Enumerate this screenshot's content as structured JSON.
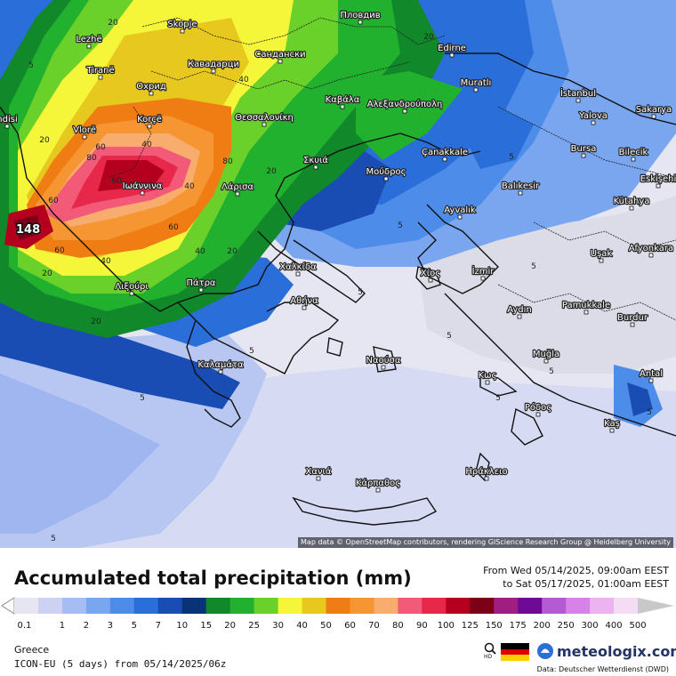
{
  "map": {
    "attribution": "Map data © OpenStreetMap contributors, rendering GIScience Research Group @ Heidelberg University",
    "peak_value": "148",
    "cities": [
      {
        "name": "Skopje"
      },
      {
        "name": "Пловдив"
      },
      {
        "name": "Lezhë"
      },
      {
        "name": "Кавадарци"
      },
      {
        "name": "Сандански"
      },
      {
        "name": "Edirne"
      },
      {
        "name": "Tiranë"
      },
      {
        "name": "Охрид"
      },
      {
        "name": "Muratlı"
      },
      {
        "name": "İstanbul"
      },
      {
        "name": "Καβάλα"
      },
      {
        "name": "Αλεξανδρούπολη"
      },
      {
        "name": "Korçë"
      },
      {
        "name": "Θεσσαλονίκη"
      },
      {
        "name": "Yalova"
      },
      {
        "name": "Sakarya"
      },
      {
        "name": "ndisi"
      },
      {
        "name": "Vlorë"
      },
      {
        "name": "Çanakkale"
      },
      {
        "name": "Bursa"
      },
      {
        "name": "Bilecik"
      },
      {
        "name": "Σκυιά"
      },
      {
        "name": "Μούδρος"
      },
      {
        "name": "Ιωάννινα"
      },
      {
        "name": "Λάρισα"
      },
      {
        "name": "Balıkesir"
      },
      {
        "name": "Eskişehi"
      },
      {
        "name": "Kütahya"
      },
      {
        "name": "Ayvalık"
      },
      {
        "name": "Uşak"
      },
      {
        "name": "Afyonkara"
      },
      {
        "name": "Χαλκίδα"
      },
      {
        "name": "Xίος"
      },
      {
        "name": "İzmir"
      },
      {
        "name": "Λιξούρι"
      },
      {
        "name": "Πάτρα"
      },
      {
        "name": "Αθήνα"
      },
      {
        "name": "Aydın"
      },
      {
        "name": "Pamukkale"
      },
      {
        "name": "Burdur"
      },
      {
        "name": "Ναούσα"
      },
      {
        "name": "Muğla"
      },
      {
        "name": "Καλαμάτα"
      },
      {
        "name": "Κως"
      },
      {
        "name": "Antal"
      },
      {
        "name": "Ρόδος"
      },
      {
        "name": "Kaş"
      },
      {
        "name": "Χανιά"
      },
      {
        "name": "Κάρπαθος"
      },
      {
        "name": "Ηράκλειο"
      }
    ],
    "contour_labels": [
      "20",
      "20",
      "40",
      "5",
      "20",
      "40",
      "80",
      "60",
      "80",
      "60",
      "20",
      "60",
      "40",
      "60",
      "40",
      "20",
      "60",
      "40",
      "20",
      "20",
      "5",
      "5",
      "5",
      "5",
      "5",
      "5",
      "5",
      "5",
      "5",
      "5",
      "5"
    ]
  },
  "footer": {
    "title": "Accumulated total precipitation (mm)",
    "period_from": "From Wed 05/14/2025, 09:00am EEST",
    "period_to": "to Sat 05/17/2025, 01:00am EEST",
    "region": "Greece",
    "model": "ICON-EU (5 days) from 05/14/2025/06z",
    "brand": "meteologix.com",
    "data_source": "Data: Deutscher Wetterdienst (DWD)"
  },
  "legend": {
    "unit": "mm",
    "steps": [
      {
        "label": "0.1",
        "color": "#e6e6f2"
      },
      {
        "label": "1",
        "color": "#cdd2f2"
      },
      {
        "label": "2",
        "color": "#a5bdf2"
      },
      {
        "label": "3",
        "color": "#7aa6ef"
      },
      {
        "label": "5",
        "color": "#4d8ce8"
      },
      {
        "label": "7",
        "color": "#2a6ed9"
      },
      {
        "label": "10",
        "color": "#1a4db3"
      },
      {
        "label": "15",
        "color": "#0a3278"
      },
      {
        "label": "20",
        "color": "#11882a"
      },
      {
        "label": "25",
        "color": "#22b02f"
      },
      {
        "label": "30",
        "color": "#6ad12a"
      },
      {
        "label": "40",
        "color": "#f5f53a"
      },
      {
        "label": "50",
        "color": "#e6c81e"
      },
      {
        "label": "60",
        "color": "#f07d14"
      },
      {
        "label": "70",
        "color": "#f59632"
      },
      {
        "label": "80",
        "color": "#f8ac6e"
      },
      {
        "label": "90",
        "color": "#f25a78"
      },
      {
        "label": "100",
        "color": "#e8284b"
      },
      {
        "label": "125",
        "color": "#b4001e"
      },
      {
        "label": "150",
        "color": "#7d0019"
      },
      {
        "label": "175",
        "color": "#a01e82"
      },
      {
        "label": "200",
        "color": "#6e0a96"
      },
      {
        "label": "250",
        "color": "#b45ad2"
      },
      {
        "label": "300",
        "color": "#d782e6"
      },
      {
        "label": "400",
        "color": "#ebb4f0"
      },
      {
        "label": "500",
        "color": "#f5dcf5"
      },
      {
        "label": "",
        "color": "#c8c8c8"
      }
    ]
  }
}
